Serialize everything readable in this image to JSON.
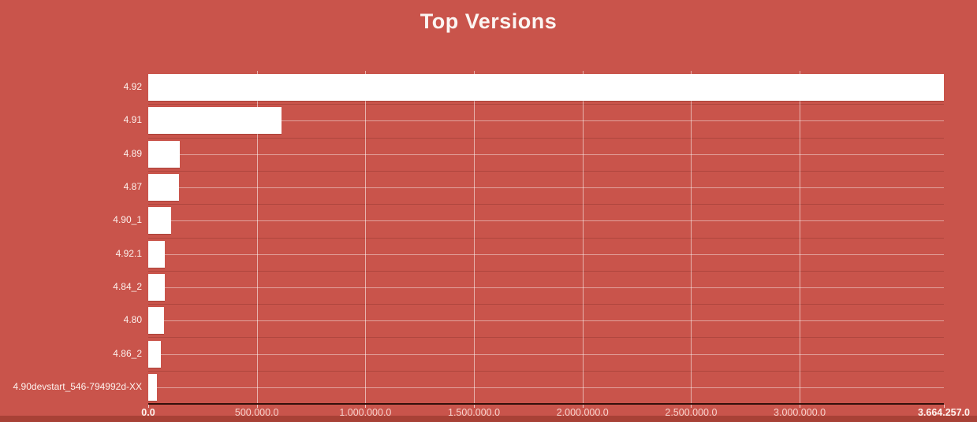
{
  "title": "Top Versions",
  "colors": {
    "background": "#c9544b",
    "footer_strip": "#a84136",
    "bar": "#ffffff",
    "gridline": "rgba(255,255,255,0.55)",
    "axis_line": "#33100b",
    "category_label": "#fdf2ee",
    "tick_label": "rgba(255,233,226,0.85)",
    "title_text": "#fbf5f2"
  },
  "chart_data": {
    "type": "bar",
    "orientation": "horizontal",
    "title": "Top Versions",
    "categories": [
      "4.92",
      "4.91",
      "4.89",
      "4.87",
      "4.90_1",
      "4.92.1",
      "4.84_2",
      "4.80",
      "4.86_2",
      "4.90devstart_546-794992d-XX"
    ],
    "values": [
      3664257,
      612000,
      145000,
      140000,
      107000,
      78000,
      75000,
      71000,
      58000,
      39000
    ],
    "xlabel": "",
    "ylabel": "",
    "xlim": [
      0,
      3664257
    ],
    "x_ticks": [
      {
        "value": 0,
        "label": "0.0",
        "bold": true
      },
      {
        "value": 500000,
        "label": "500,000.0",
        "bold": false
      },
      {
        "value": 1000000,
        "label": "1,000,000.0",
        "bold": false
      },
      {
        "value": 1500000,
        "label": "1,500,000.0",
        "bold": false
      },
      {
        "value": 2000000,
        "label": "2,000,000.0",
        "bold": false
      },
      {
        "value": 2500000,
        "label": "2,500,000.0",
        "bold": false
      },
      {
        "value": 3000000,
        "label": "3,000,000.0",
        "bold": false
      },
      {
        "value": 3664257,
        "label": "3,664,257.0",
        "bold": true
      }
    ],
    "grid": true,
    "legend": false
  }
}
